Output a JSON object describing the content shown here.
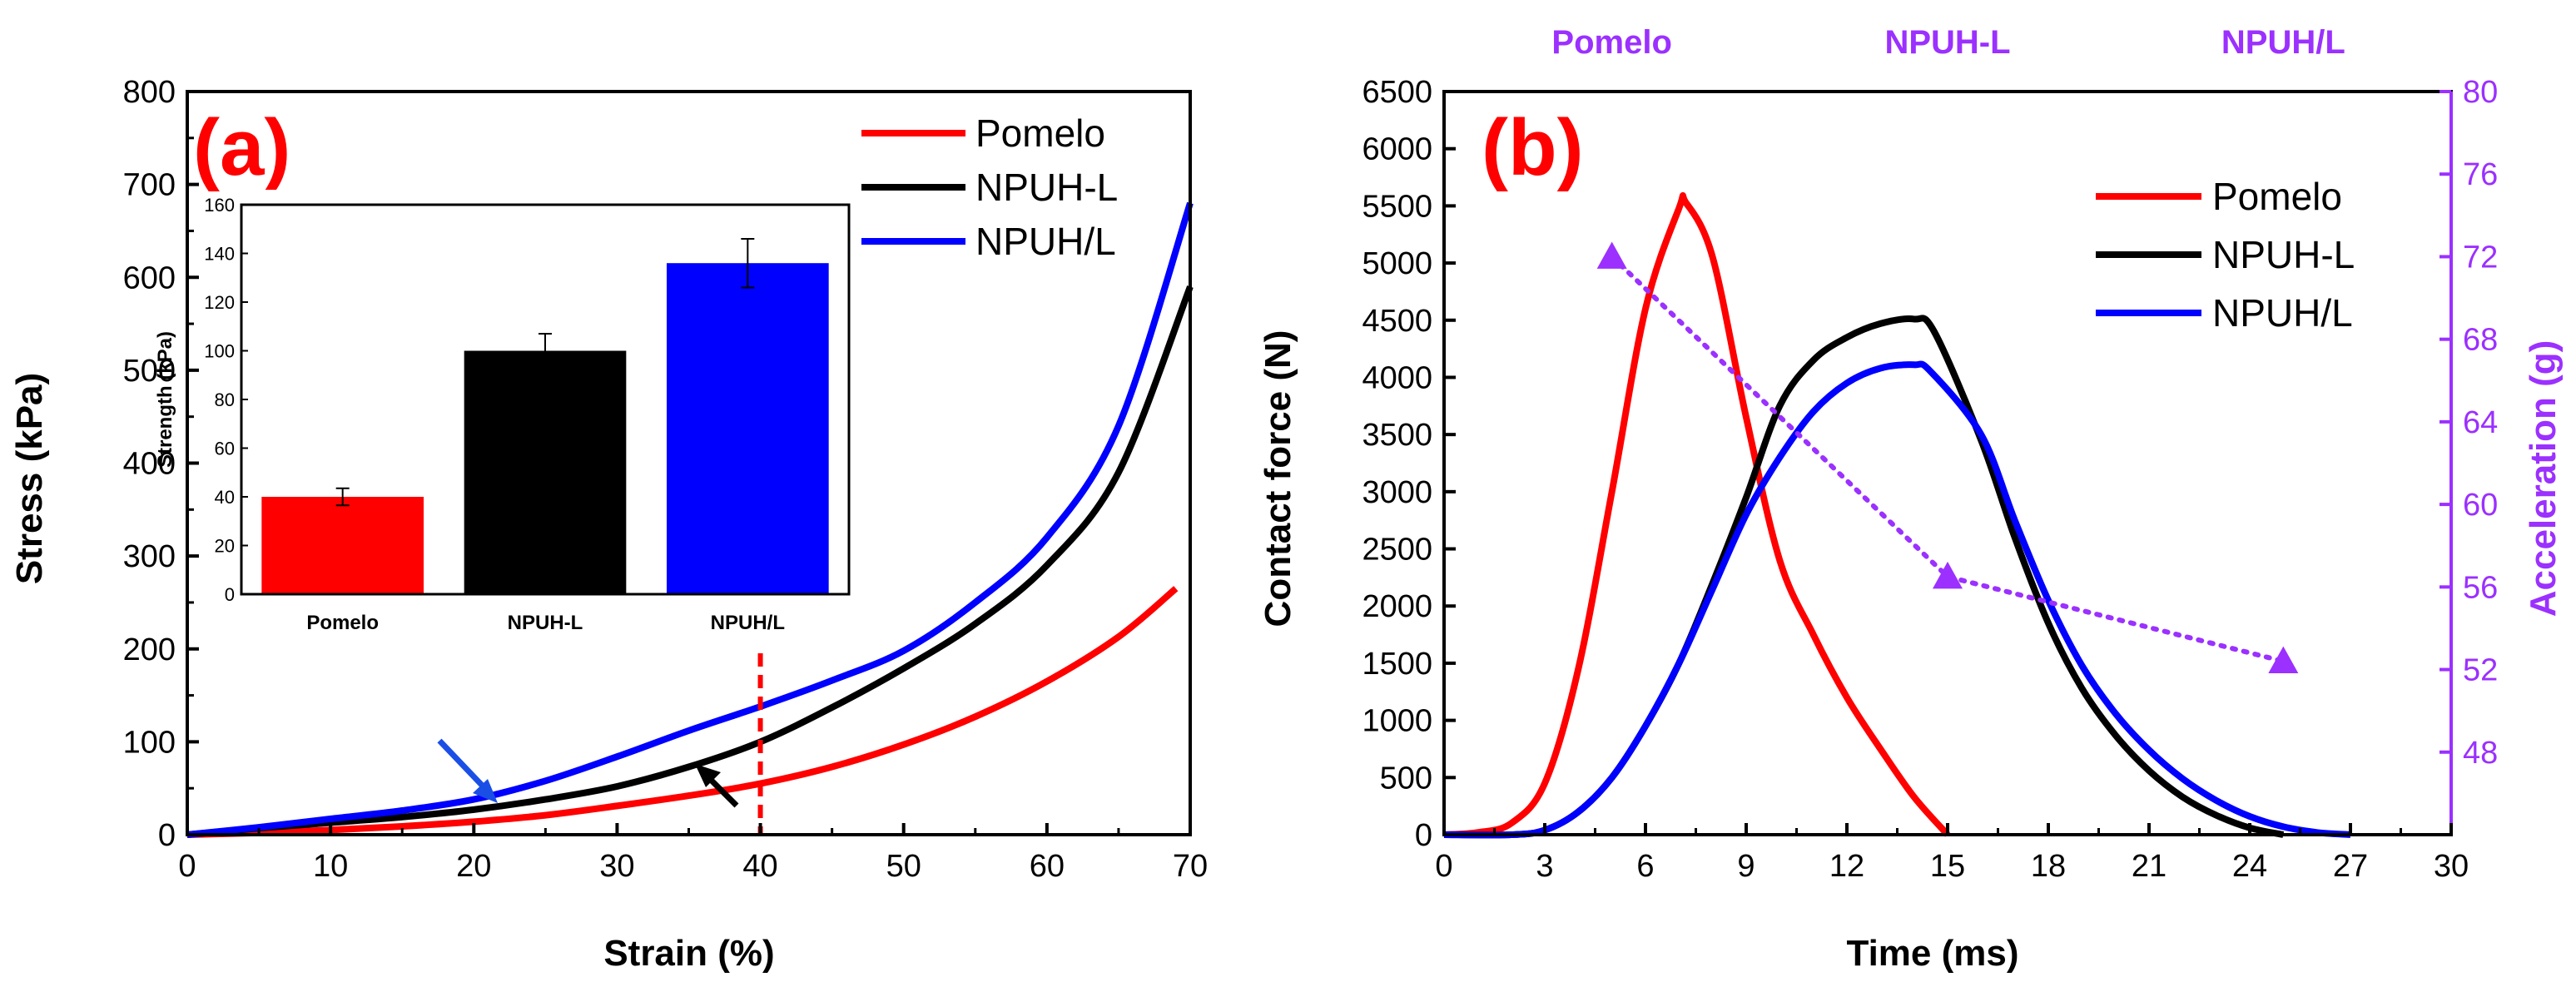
{
  "chart_data": [
    {
      "panel": "(a)",
      "type": "line",
      "xlabel": "Strain (%)",
      "ylabel": "Stress (kPa)",
      "xlim": [
        0,
        70
      ],
      "ylim": [
        0,
        800
      ],
      "xticks": [
        "0",
        "10",
        "20",
        "30",
        "40",
        "50",
        "60",
        "70"
      ],
      "yticks": [
        "0",
        "100",
        "200",
        "300",
        "400",
        "500",
        "600",
        "700",
        "800"
      ],
      "legend_position": "top-right",
      "series": [
        {
          "name": "Pomelo",
          "color": "#ff0000",
          "x": [
            0,
            5,
            10,
            15,
            20,
            25,
            30,
            35,
            40,
            45,
            50,
            55,
            60,
            65,
            69
          ],
          "y": [
            0,
            2,
            5,
            9,
            14,
            21,
            31,
            42,
            55,
            73,
            97,
            127,
            165,
            213,
            265
          ]
        },
        {
          "name": "NPUH-L",
          "color": "#000000",
          "x": [
            0,
            5,
            10,
            15,
            20,
            25,
            30,
            35,
            40,
            45,
            50,
            55,
            60,
            65,
            70
          ],
          "y": [
            0,
            7,
            13,
            19,
            27,
            38,
            52,
            73,
            100,
            137,
            179,
            227,
            290,
            390,
            590
          ]
        },
        {
          "name": "NPUH/L",
          "color": "#0000ff",
          "x": [
            0,
            5,
            10,
            15,
            20,
            25,
            30,
            35,
            40,
            45,
            50,
            55,
            60,
            65,
            70
          ],
          "y": [
            0,
            8,
            17,
            26,
            38,
            58,
            84,
            112,
            138,
            166,
            198,
            250,
            320,
            440,
            680
          ]
        }
      ],
      "annotations": {
        "dashed_line_x": 40,
        "dashed_line_color": "#ff0000"
      },
      "inset": {
        "type": "bar",
        "ylabel": "Strength (kPa)",
        "ylim": [
          0,
          160
        ],
        "yticks": [
          "0",
          "20",
          "40",
          "60",
          "80",
          "100",
          "120",
          "140",
          "160"
        ],
        "categories": [
          "Pomelo",
          "NPUH-L",
          "NPUH/L"
        ],
        "values": [
          40,
          100,
          136
        ],
        "errors": [
          3.5,
          7,
          10
        ],
        "colors": [
          "#ff0000",
          "#000000",
          "#0000ff"
        ]
      }
    },
    {
      "panel": "(b)",
      "type": "line",
      "xlabel": "Time (ms)",
      "ylabel": "Contact force (N)",
      "y2label": "Acceleration (g)",
      "xlim": [
        0,
        30
      ],
      "ylim": [
        0,
        6500
      ],
      "y2lim": [
        44,
        80
      ],
      "xticks": [
        "0",
        "3",
        "6",
        "9",
        "12",
        "15",
        "18",
        "21",
        "24",
        "27",
        "30"
      ],
      "yticks": [
        "0",
        "500",
        "1000",
        "1500",
        "2000",
        "2500",
        "3000",
        "3500",
        "4000",
        "4500",
        "5000",
        "5500",
        "6000",
        "6500"
      ],
      "y2ticks": [
        "48",
        "52",
        "56",
        "60",
        "64",
        "68",
        "72",
        "76",
        "80"
      ],
      "legend_position": "top-right",
      "series": [
        {
          "name": "Pomelo",
          "color": "#ff0000",
          "x": [
            0,
            1,
            2,
            3,
            4,
            5,
            6,
            7,
            7.2,
            8,
            9,
            10,
            11,
            12,
            13,
            14,
            15
          ],
          "y": [
            0,
            20,
            100,
            450,
            1450,
            3000,
            4600,
            5480,
            5530,
            5050,
            3650,
            2400,
            1750,
            1200,
            750,
            330,
            0
          ]
        },
        {
          "name": "NPUH-L",
          "color": "#000000",
          "x": [
            0,
            2,
            3,
            4,
            5,
            6,
            7,
            8,
            9,
            10,
            11,
            12,
            13,
            14,
            14.6,
            16,
            17,
            18,
            19,
            20,
            21,
            22,
            23,
            24,
            25
          ],
          "y": [
            0,
            0,
            40,
            200,
            500,
            950,
            1500,
            2200,
            2950,
            3750,
            4150,
            4350,
            4470,
            4510,
            4400,
            3450,
            2600,
            1850,
            1280,
            870,
            560,
            330,
            170,
            60,
            0
          ]
        },
        {
          "name": "NPUH/L",
          "color": "#0000ff",
          "x": [
            0,
            2,
            3,
            4,
            5,
            6,
            7,
            8,
            9,
            10,
            11,
            12,
            13,
            14,
            14.5,
            16,
            17,
            18,
            19,
            20,
            21,
            22,
            23,
            24,
            25,
            26,
            27
          ],
          "y": [
            0,
            0,
            40,
            200,
            500,
            950,
            1500,
            2150,
            2800,
            3300,
            3700,
            3950,
            4080,
            4110,
            4050,
            3500,
            2750,
            2050,
            1480,
            1060,
            740,
            490,
            300,
            160,
            70,
            20,
            0
          ]
        }
      ],
      "acceleration_series": {
        "color": "#9b30ff",
        "x": [
          5,
          15,
          25
        ],
        "y": [
          72,
          56.5,
          52.4
        ],
        "labels": [
          "Pomelo",
          "NPUH-L",
          "NPUH/L"
        ]
      }
    }
  ]
}
